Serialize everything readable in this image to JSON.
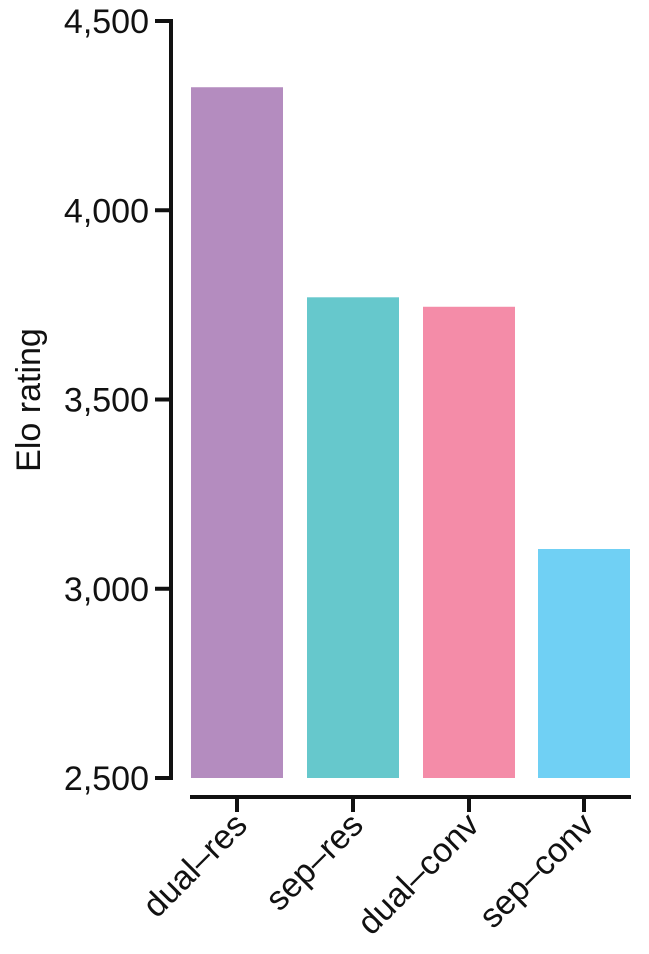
{
  "chart_data": {
    "type": "bar",
    "title": "",
    "xlabel": "",
    "ylabel": "Elo rating",
    "categories": [
      "dual–res",
      "sep–res",
      "dual–conv",
      "sep–conv"
    ],
    "values": [
      4325,
      3770,
      3745,
      3105
    ],
    "colors": [
      "#b48cbf",
      "#66c8cc",
      "#f48ca8",
      "#70d0f4"
    ],
    "ylim": [
      2500,
      4500
    ],
    "yticks": [
      2500,
      3000,
      3500,
      4000,
      4500
    ],
    "ytick_labels": [
      "2,500",
      "3,000",
      "3,500",
      "4,000",
      "4,500"
    ],
    "grid": false,
    "legend": "none"
  }
}
